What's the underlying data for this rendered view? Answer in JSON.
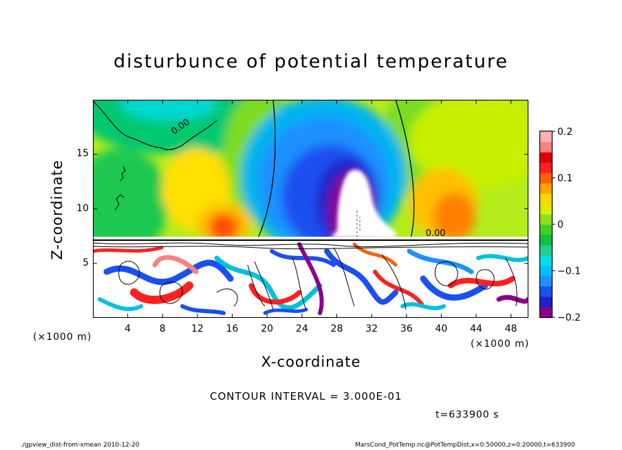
{
  "chart_data": {
    "type": "heatmap",
    "title": "disturbunce of potential temperature",
    "xlabel": "X-coordinate",
    "ylabel": "Z-coordinate",
    "x_unit_left": "(×1000 m)",
    "x_unit_right": "(×1000 m)",
    "xlim": [
      0,
      50
    ],
    "ylim": [
      0,
      20
    ],
    "x_ticks": [
      "4",
      "8",
      "12",
      "16",
      "20",
      "24",
      "28",
      "32",
      "36",
      "40",
      "44",
      "48"
    ],
    "x_tick_values": [
      4,
      8,
      12,
      16,
      20,
      24,
      28,
      32,
      36,
      40,
      44,
      48
    ],
    "y_ticks": [
      "5",
      "10",
      "15"
    ],
    "y_tick_values": [
      5,
      10,
      15
    ],
    "colorbar": {
      "range": [
        -0.2,
        0.2
      ],
      "ticks": [
        "0.2",
        "0.1",
        "0",
        "−0.1",
        "−0.2"
      ],
      "tick_values": [
        0.2,
        0.1,
        0,
        -0.1,
        -0.2
      ],
      "colors": [
        "#8b008b",
        "#2020c8",
        "#1a50f0",
        "#1e90ff",
        "#00bfff",
        "#00e0e0",
        "#20d090",
        "#10c040",
        "#40d020",
        "#90e020",
        "#d8f000",
        "#ffd700",
        "#ffa500",
        "#ff6000",
        "#ff2020",
        "#e00000",
        "#ff8080",
        "#ffb0b0"
      ]
    },
    "contour_labels": [
      {
        "text": "0.00",
        "x": 9.3,
        "z": 16.8,
        "angle": -35
      },
      {
        "text": "0.00",
        "x": 38.2,
        "z": 7.5,
        "angle": 0
      }
    ],
    "features": [
      {
        "kind": "min",
        "x": 30,
        "z": 10.5,
        "value": -0.24
      },
      {
        "kind": "max",
        "x": 15.5,
        "z": 8.8,
        "value": 0.17
      },
      {
        "kind": "max",
        "x": 42.5,
        "z": 9.8,
        "value": 0.17
      },
      {
        "kind": "max",
        "x": 11.5,
        "z": 11.0,
        "value": 0.1
      },
      {
        "kind": "min",
        "x": 8.0,
        "z": 20.0,
        "value": -0.07
      },
      {
        "kind": "max",
        "x": 47.0,
        "z": 16.0,
        "value": 0.05
      }
    ]
  },
  "contour_interval": "CONTOUR INTERVAL = 3.000E-01",
  "time_label": "t=633900 s",
  "footer_left": "./gpview_dist-from-xmean  2010-12-20",
  "footer_right": "MarsCond_PotTemp.nc@PotTempDist,x=0:50000,z=0:20000,t=633900"
}
